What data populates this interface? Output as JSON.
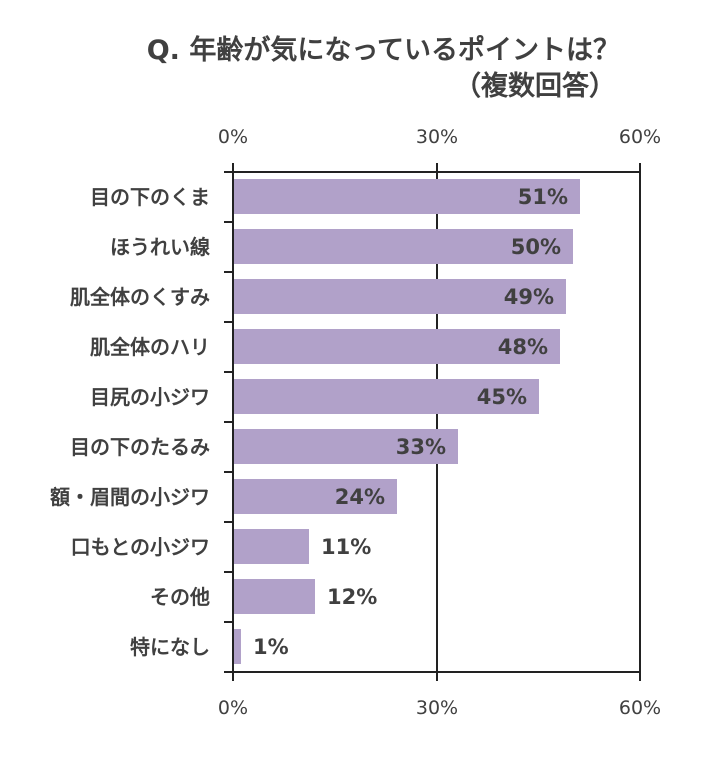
{
  "title": {
    "line1": "Q. 年齢が気になっているポイントは？",
    "line2": "（複数回答）"
  },
  "axis": {
    "ticks": [
      "0%",
      "30%",
      "60%"
    ]
  },
  "colors": {
    "bar": "#b1a1c9",
    "text": "#404040",
    "axis": "#222222"
  },
  "chart_data": {
    "type": "bar",
    "orientation": "horizontal",
    "title": "Q. 年齢が気になっているポイントは？（複数回答）",
    "xlabel": "",
    "ylabel": "",
    "xlim": [
      0,
      60
    ],
    "xticks": [
      "0%",
      "30%",
      "60%"
    ],
    "grid": true,
    "legend": null,
    "categories": [
      "目の下のくま",
      "ほうれい線",
      "肌全体のくすみ",
      "肌全体のハリ",
      "目尻の小ジワ",
      "目の下のたるみ",
      "額・眉間の小ジワ",
      "口もとの小ジワ",
      "その他",
      "特になし"
    ],
    "values": [
      51,
      50,
      49,
      48,
      45,
      33,
      24,
      11,
      12,
      1
    ],
    "value_labels": [
      "51%",
      "50%",
      "49%",
      "48%",
      "45%",
      "33%",
      "24%",
      "11%",
      "12%",
      "1%"
    ]
  }
}
